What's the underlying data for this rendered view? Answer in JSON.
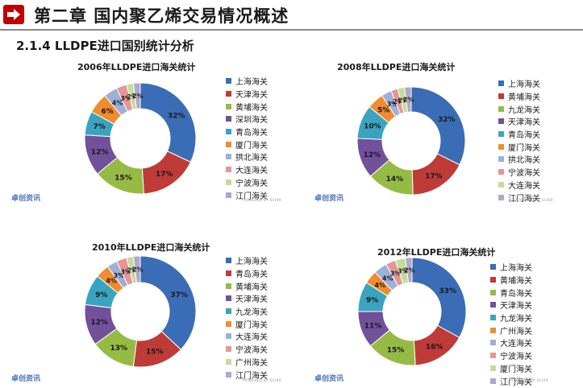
{
  "header": {
    "title": "第二章  国内聚乙烯交易情况概述",
    "icon": "arrow-right-icon"
  },
  "section_title": "2.1.4 LLDPE进口国别统计分析",
  "watermark": {
    "brand": "卓创资讯",
    "powered": "POWERED BY SCI99"
  },
  "colors": [
    "#3a6db5",
    "#be3b38",
    "#96bb45",
    "#72509a",
    "#3aa4c0",
    "#f18b2f",
    "#9cb0d8",
    "#e69694",
    "#c5dc9a",
    "#b3a5cc"
  ],
  "chart_data": [
    {
      "type": "pie",
      "donut": true,
      "title": "2006年LLDPE进口海关统计",
      "categories": [
        "上海海关",
        "天津海关",
        "黄埔海关",
        "深圳海关",
        "青岛海关",
        "厦门海关",
        "拱北海关",
        "大连海关",
        "宁波海关",
        "江门海关"
      ],
      "values": [
        32,
        17,
        15,
        12,
        7,
        6,
        4,
        3,
        2,
        2
      ],
      "data_labels": [
        "32%",
        "17%",
        "15%",
        "12%",
        "7%",
        "6%",
        "4%",
        "3%",
        "2%",
        "2%"
      ],
      "legend_position": "right"
    },
    {
      "type": "pie",
      "donut": true,
      "title": "2008年LLDPE进口海关统计",
      "categories": [
        "上海海关",
        "黄埔海关",
        "九龙海关",
        "天津海关",
        "青岛海关",
        "厦门海关",
        "拱北海关",
        "宁波海关",
        "大连海关",
        "江门海关"
      ],
      "values": [
        32,
        17,
        14,
        12,
        10,
        5,
        3,
        2,
        2,
        2
      ],
      "data_labels": [
        "32%",
        "17%",
        "14%",
        "12%",
        "10%",
        "5%",
        "3%",
        "2%",
        "2%",
        "2%"
      ],
      "legend_position": "right"
    },
    {
      "type": "pie",
      "donut": true,
      "title": "2010年LLDPE进口海关统计",
      "categories": [
        "上海海关",
        "青岛海关",
        "黄埔海关",
        "天津海关",
        "九龙海关",
        "厦门海关",
        "大连海关",
        "宁波海关",
        "广州海关",
        "江门海关"
      ],
      "values": [
        37,
        15,
        13,
        12,
        9,
        4,
        3,
        3,
        2,
        2
      ],
      "data_labels": [
        "37%",
        "15%",
        "13%",
        "12%",
        "9%",
        "4%",
        "3%",
        "3%",
        "2%",
        "2%"
      ],
      "legend_position": "right"
    },
    {
      "type": "pie",
      "donut": true,
      "title": "2012年LLDPE进口海关统计",
      "categories": [
        "上海海关",
        "黄埔海关",
        "青岛海关",
        "天津海关",
        "九龙海关",
        "广州海关",
        "大连海关",
        "宁波海关",
        "厦门海关",
        "江门海关"
      ],
      "values": [
        33,
        16,
        15,
        11,
        9,
        4,
        4,
        3,
        3,
        2
      ],
      "data_labels": [
        "33%",
        "16%",
        "15%",
        "11%",
        "9%",
        "4%",
        "4%",
        "3%",
        "3%",
        "2%"
      ],
      "legend_position": "right"
    }
  ]
}
